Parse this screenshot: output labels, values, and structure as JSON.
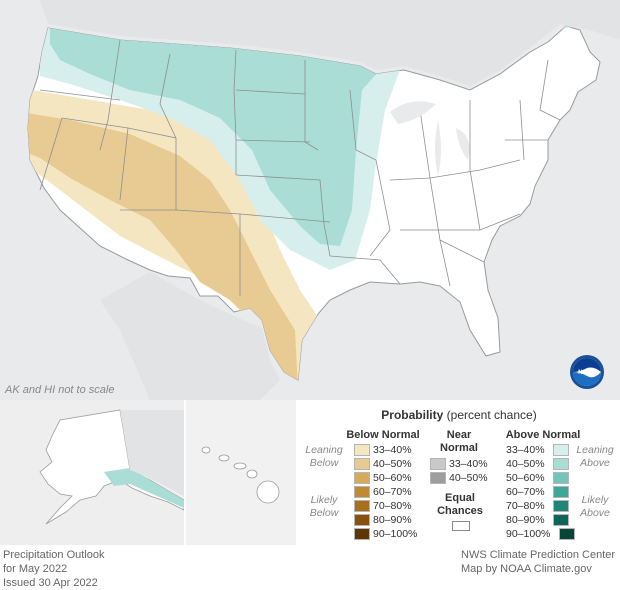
{
  "map": {
    "inset_note": "AK and HI not to scale",
    "logo_text": "NOAA",
    "colors": {
      "background": "#e9eaeb",
      "land": "#ffffff",
      "below_33_40": "#f5e6c2",
      "below_40_50": "#e7cb92",
      "above_33_40": "#d7efec",
      "above_40_50": "#a9ddd5"
    }
  },
  "legend": {
    "title_bold": "Probability",
    "title_rest": "(percent chance)",
    "below": {
      "heading": "Below Normal",
      "rows": [
        {
          "label": "33–40%",
          "color": "#f5e6c2"
        },
        {
          "label": "40–50%",
          "color": "#e7cb92"
        },
        {
          "label": "50–60%",
          "color": "#d5aa5a"
        },
        {
          "label": "60–70%",
          "color": "#c08a33"
        },
        {
          "label": "70–80%",
          "color": "#a86f1c"
        },
        {
          "label": "80–90%",
          "color": "#87500f"
        },
        {
          "label": "90–100%",
          "color": "#5e3506"
        }
      ]
    },
    "near": {
      "heading_line1": "Near",
      "heading_line2": "Normal",
      "rows": [
        {
          "label": "33–40%",
          "color": "#c9c9c9"
        },
        {
          "label": "40–50%",
          "color": "#9e9e9e"
        }
      ]
    },
    "equal": {
      "line1": "Equal",
      "line2": "Chances",
      "color": "#ffffff"
    },
    "above": {
      "heading": "Above Normal",
      "rows": [
        {
          "label": "33–40%",
          "color": "#d7efec"
        },
        {
          "label": "40–50%",
          "color": "#a9ddd5"
        },
        {
          "label": "50–60%",
          "color": "#73c5b8"
        },
        {
          "label": "60–70%",
          "color": "#3fa798"
        },
        {
          "label": "70–80%",
          "color": "#1e8577"
        },
        {
          "label": "80–90%",
          "color": "#0f6559"
        },
        {
          "label": "90–100%",
          "color": "#064538"
        }
      ]
    },
    "side_labels": {
      "leaning_below_1": "Leaning",
      "leaning_below_2": "Below",
      "likely_below_1": "Likely",
      "likely_below_2": "Below",
      "leaning_above_1": "Leaning",
      "leaning_above_2": "Above",
      "likely_above_1": "Likely",
      "likely_above_2": "Above"
    }
  },
  "footer": {
    "left_line1": "Precipitation Outlook",
    "left_line2": "for May 2022",
    "left_line3": "Issued 30 Apr 2022",
    "right_line1": "NWS Climate Prediction Center",
    "right_line2": "Map by NOAA Climate.gov"
  }
}
